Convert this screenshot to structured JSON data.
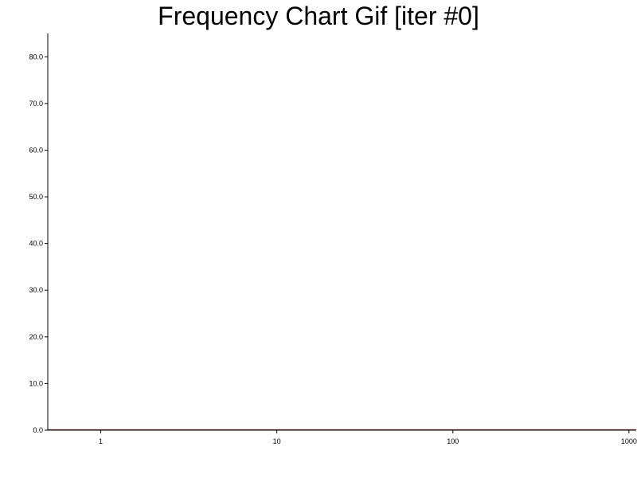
{
  "chart_data": {
    "type": "line",
    "title": "Frequency Chart Gif [iter #0]",
    "xlabel": "",
    "ylabel": "",
    "x_scale": "log",
    "xlim": [
      0.5,
      1100
    ],
    "ylim": [
      0,
      85
    ],
    "x_ticks": [
      1,
      10,
      100,
      1000
    ],
    "x_tick_labels": [
      "1",
      "10",
      "100",
      "1000"
    ],
    "y_ticks": [
      0,
      10,
      20,
      30,
      40,
      50,
      60,
      70,
      80
    ],
    "y_tick_labels": [
      "0.0",
      "10.0",
      "20.0",
      "30.0",
      "40.0",
      "50.0",
      "60.0",
      "70.0",
      "80.0"
    ],
    "grid": false,
    "series": [
      {
        "color": "#8b1a1a",
        "x": [
          0.5,
          1,
          10,
          100,
          1000,
          1100
        ],
        "y": [
          0,
          0,
          0,
          0,
          0,
          0
        ]
      }
    ]
  }
}
